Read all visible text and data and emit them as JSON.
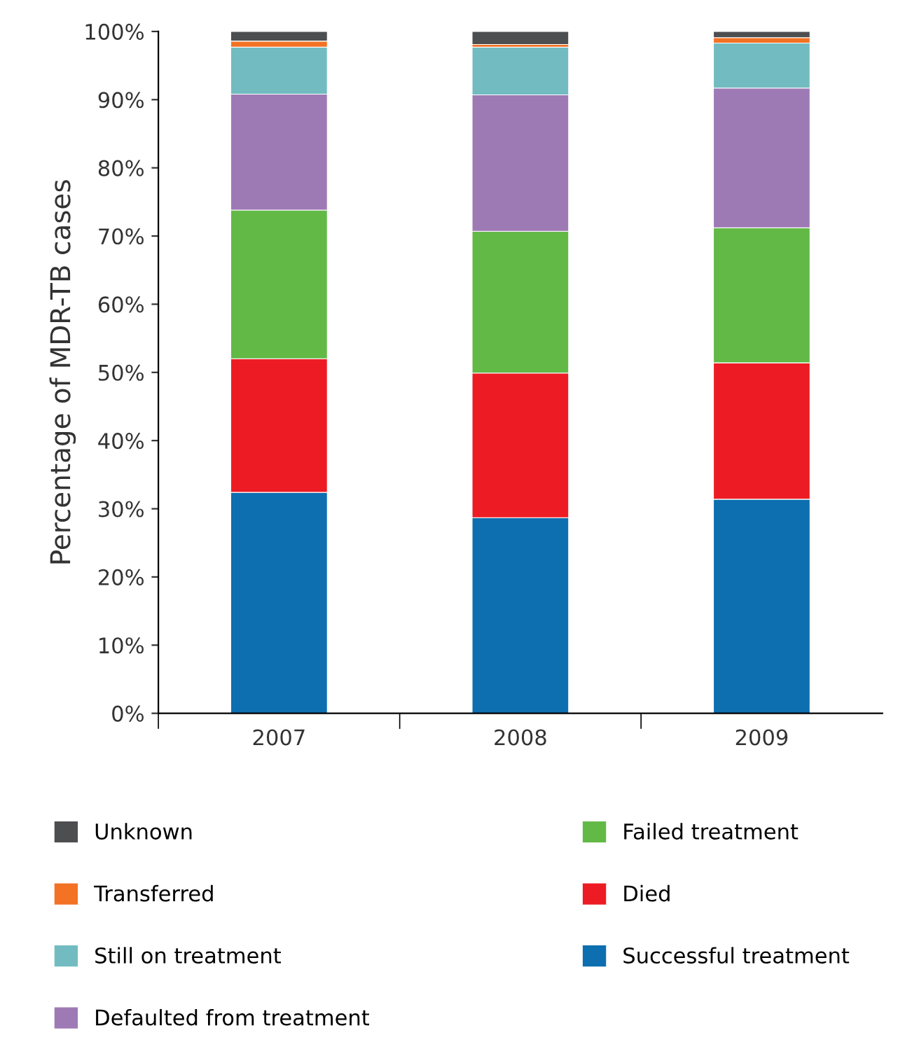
{
  "chart_data": {
    "type": "bar",
    "stacked": true,
    "ylabel": "Percentage of MDR-TB cases",
    "categories": [
      "2007",
      "2008",
      "2009"
    ],
    "ylim": [
      0,
      100
    ],
    "yticks": [
      {
        "value": 0,
        "label": "0%"
      },
      {
        "value": 10,
        "label": "10%"
      },
      {
        "value": 20,
        "label": "20%"
      },
      {
        "value": 30,
        "label": "30%"
      },
      {
        "value": 40,
        "label": "40%"
      },
      {
        "value": 50,
        "label": "50%"
      },
      {
        "value": 60,
        "label": "60%"
      },
      {
        "value": 70,
        "label": "70%"
      },
      {
        "value": 80,
        "label": "80%"
      },
      {
        "value": 90,
        "label": "90%"
      },
      {
        "value": 100,
        "label": "100%"
      }
    ],
    "grid": false,
    "legend": "bottom",
    "series": [
      {
        "name": "Successful treatment",
        "color": "#0d6eb0",
        "values": [
          32.4,
          28.7,
          31.4
        ]
      },
      {
        "name": "Died",
        "color": "#ed1c24",
        "values": [
          19.6,
          21.2,
          20.0
        ]
      },
      {
        "name": "Failed treatment",
        "color": "#62b946",
        "values": [
          21.8,
          20.8,
          19.8
        ]
      },
      {
        "name": "Defaulted from treatment",
        "color": "#9e7ab5",
        "values": [
          17.0,
          20.0,
          20.5
        ]
      },
      {
        "name": "Still on treatment",
        "color": "#72bcc1",
        "values": [
          6.9,
          7.0,
          6.6
        ]
      },
      {
        "name": "Transferred",
        "color": "#f37224",
        "values": [
          0.9,
          0.4,
          0.8
        ]
      },
      {
        "name": "Unknown",
        "color": "#4d4e50",
        "values": [
          1.4,
          1.9,
          0.9
        ]
      }
    ]
  }
}
